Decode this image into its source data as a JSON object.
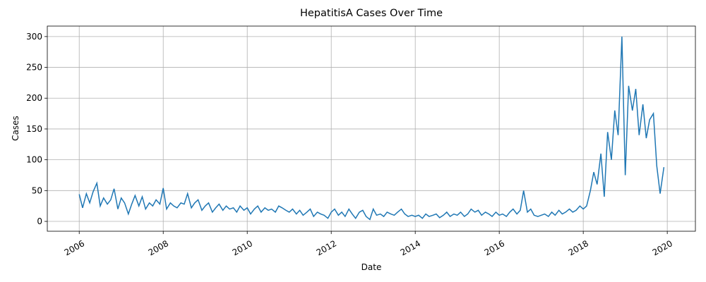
{
  "chart_data": {
    "type": "line",
    "title": "HepatitisA Cases Over Time",
    "x_label": "Date",
    "y_label": "Cases",
    "color": "#1f77b4",
    "grid": true,
    "xlim": [
      2005.24,
      2020.67
    ],
    "ylim": [
      -16,
      317
    ],
    "xticks": [
      2006,
      2008,
      2010,
      2012,
      2014,
      2016,
      2018,
      2020
    ],
    "yticks": [
      0,
      50,
      100,
      150,
      200,
      250,
      300
    ],
    "x": [
      2006,
      2006.08,
      2006.17,
      2006.25,
      2006.33,
      2006.42,
      2006.5,
      2006.58,
      2006.67,
      2006.75,
      2006.83,
      2006.92,
      2007,
      2007.08,
      2007.17,
      2007.25,
      2007.33,
      2007.42,
      2007.5,
      2007.58,
      2007.67,
      2007.75,
      2007.83,
      2007.92,
      2008,
      2008.08,
      2008.17,
      2008.25,
      2008.33,
      2008.42,
      2008.5,
      2008.58,
      2008.67,
      2008.75,
      2008.83,
      2008.92,
      2009,
      2009.08,
      2009.17,
      2009.25,
      2009.33,
      2009.42,
      2009.5,
      2009.58,
      2009.67,
      2009.75,
      2009.83,
      2009.92,
      2010,
      2010.08,
      2010.17,
      2010.25,
      2010.33,
      2010.42,
      2010.5,
      2010.58,
      2010.67,
      2010.75,
      2010.83,
      2010.92,
      2011,
      2011.08,
      2011.17,
      2011.25,
      2011.33,
      2011.42,
      2011.5,
      2011.58,
      2011.67,
      2011.75,
      2011.83,
      2011.92,
      2012,
      2012.08,
      2012.17,
      2012.25,
      2012.33,
      2012.42,
      2012.5,
      2012.58,
      2012.67,
      2012.75,
      2012.83,
      2012.92,
      2013,
      2013.08,
      2013.17,
      2013.25,
      2013.33,
      2013.42,
      2013.5,
      2013.58,
      2013.67,
      2013.75,
      2013.83,
      2013.92,
      2014,
      2014.08,
      2014.17,
      2014.25,
      2014.33,
      2014.42,
      2014.5,
      2014.58,
      2014.67,
      2014.75,
      2014.83,
      2014.92,
      2015,
      2015.08,
      2015.17,
      2015.25,
      2015.33,
      2015.42,
      2015.5,
      2015.58,
      2015.67,
      2015.75,
      2015.83,
      2015.92,
      2016,
      2016.08,
      2016.17,
      2016.25,
      2016.33,
      2016.42,
      2016.5,
      2016.58,
      2016.67,
      2016.75,
      2016.83,
      2016.92,
      2017,
      2017.08,
      2017.17,
      2017.25,
      2017.33,
      2017.42,
      2017.5,
      2017.58,
      2017.67,
      2017.75,
      2017.83,
      2017.92,
      2018,
      2018.08,
      2018.17,
      2018.25,
      2018.33,
      2018.42,
      2018.5,
      2018.58,
      2018.67,
      2018.75,
      2018.83,
      2018.92,
      2019,
      2019.08,
      2019.17,
      2019.25,
      2019.33,
      2019.42,
      2019.5,
      2019.58,
      2019.67,
      2019.75,
      2019.83,
      2019.92
    ],
    "values": [
      44,
      22,
      45,
      30,
      48,
      62,
      25,
      38,
      28,
      35,
      53,
      20,
      38,
      30,
      12,
      28,
      42,
      25,
      40,
      20,
      30,
      25,
      35,
      28,
      54,
      20,
      30,
      25,
      22,
      30,
      28,
      45,
      22,
      30,
      35,
      18,
      25,
      30,
      15,
      22,
      28,
      18,
      25,
      20,
      22,
      15,
      25,
      18,
      22,
      12,
      20,
      25,
      15,
      22,
      18,
      20,
      15,
      25,
      22,
      18,
      15,
      20,
      12,
      18,
      10,
      15,
      20,
      8,
      15,
      12,
      10,
      5,
      15,
      20,
      10,
      15,
      8,
      20,
      12,
      5,
      15,
      18,
      8,
      3,
      20,
      10,
      12,
      8,
      15,
      12,
      10,
      15,
      20,
      12,
      8,
      10,
      8,
      10,
      5,
      12,
      8,
      10,
      12,
      6,
      10,
      15,
      8,
      12,
      10,
      15,
      8,
      12,
      20,
      15,
      18,
      10,
      15,
      12,
      8,
      15,
      10,
      12,
      8,
      15,
      20,
      12,
      18,
      50,
      15,
      20,
      10,
      8,
      10,
      12,
      8,
      15,
      10,
      18,
      12,
      15,
      20,
      15,
      18,
      25,
      20,
      25,
      50,
      80,
      60,
      110,
      40,
      145,
      100,
      180,
      140,
      300,
      75,
      220,
      180,
      215,
      140,
      190,
      135,
      165,
      175,
      90,
      45,
      88
    ]
  }
}
